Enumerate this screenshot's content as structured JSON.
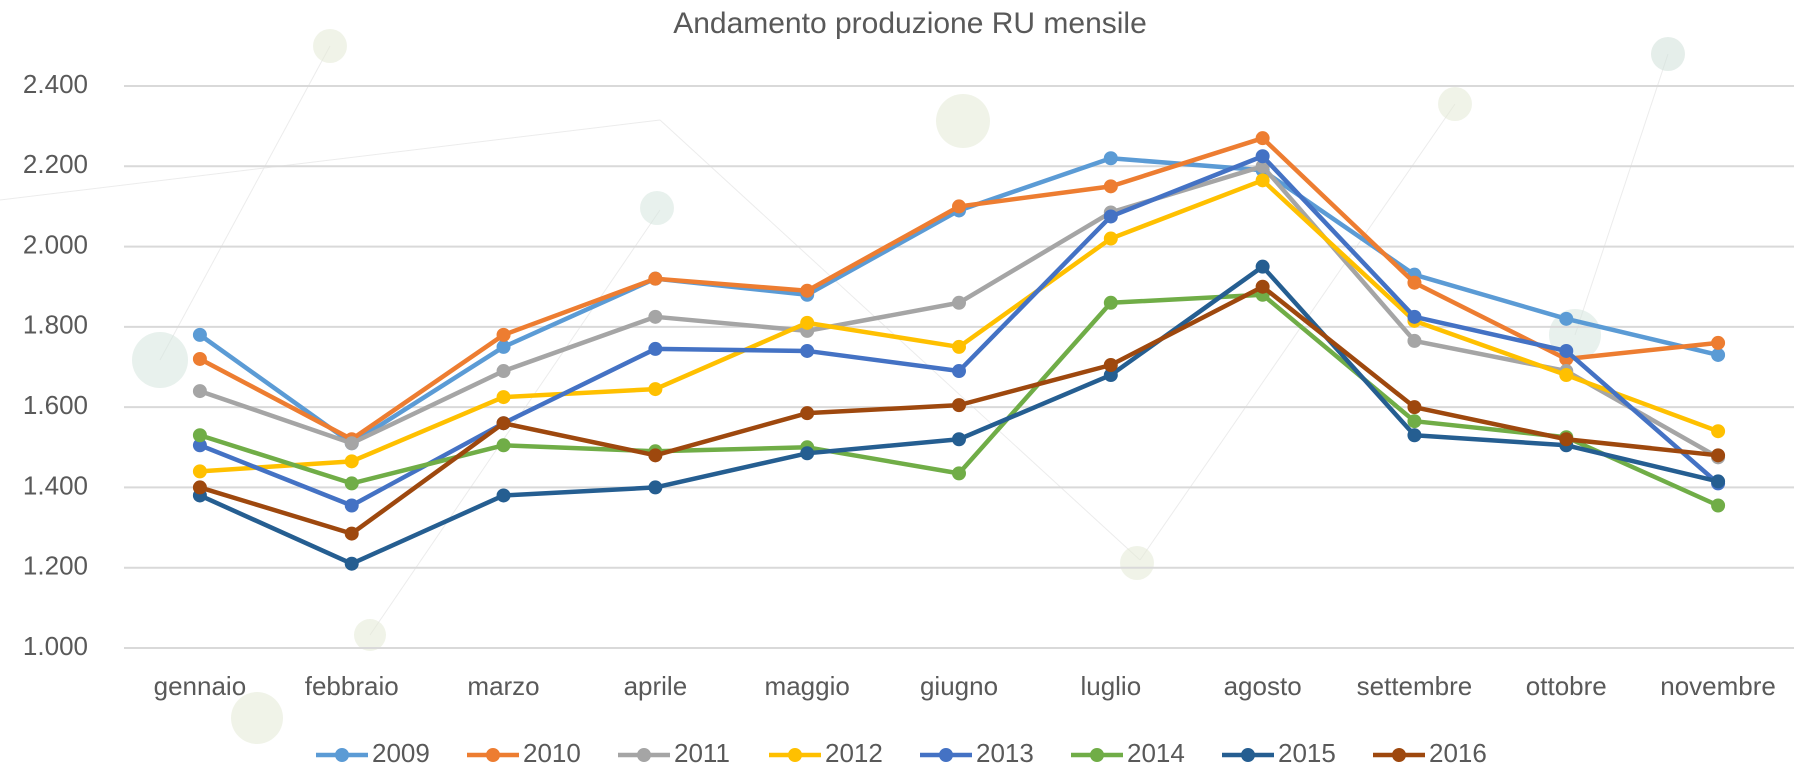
{
  "chart_data": {
    "type": "line",
    "title": "Andamento produzione  RU mensile",
    "categories": [
      "gennaio",
      "febbraio",
      "marzo",
      "aprile",
      "maggio",
      "giugno",
      "luglio",
      "agosto",
      "settembre",
      "ottobre",
      "novembre"
    ],
    "series": [
      {
        "name": "2009",
        "color": "#5B9BD5",
        "values": [
          1780,
          1510,
          1750,
          1920,
          1880,
          2090,
          2220,
          2190,
          1930,
          1820,
          1730
        ]
      },
      {
        "name": "2010",
        "color": "#ED7D31",
        "values": [
          1720,
          1520,
          1780,
          1920,
          1890,
          2100,
          2150,
          2270,
          1910,
          1720,
          1760
        ]
      },
      {
        "name": "2011",
        "color": "#A5A5A5",
        "values": [
          1640,
          1510,
          1690,
          1825,
          1790,
          1860,
          2085,
          2200,
          1765,
          1690,
          1475
        ]
      },
      {
        "name": "2012",
        "color": "#FFC000",
        "values": [
          1440,
          1465,
          1625,
          1645,
          1810,
          1750,
          2020,
          2165,
          1815,
          1680,
          1540
        ]
      },
      {
        "name": "2013",
        "color": "#4472C4",
        "values": [
          1505,
          1355,
          1560,
          1745,
          1740,
          1690,
          2075,
          2225,
          1825,
          1740,
          1410
        ]
      },
      {
        "name": "2014",
        "color": "#70AD47",
        "values": [
          1530,
          1410,
          1505,
          1490,
          1500,
          1435,
          1860,
          1880,
          1565,
          1525,
          1355
        ]
      },
      {
        "name": "2015",
        "color": "#255E91",
        "values": [
          1380,
          1210,
          1380,
          1400,
          1485,
          1520,
          1680,
          1950,
          1530,
          1505,
          1415
        ]
      },
      {
        "name": "2016",
        "color": "#9E480E",
        "values": [
          1400,
          1285,
          1560,
          1480,
          1585,
          1605,
          1705,
          1900,
          1600,
          1520,
          1480
        ]
      }
    ],
    "ylim": [
      1000,
      2400
    ],
    "yticks": [
      {
        "value": 1000,
        "label": "1.000"
      },
      {
        "value": 1200,
        "label": "1.200"
      },
      {
        "value": 1400,
        "label": "1.400"
      },
      {
        "value": 1600,
        "label": "1.600"
      },
      {
        "value": 1800,
        "label": "1.800"
      },
      {
        "value": 2000,
        "label": "2.000"
      },
      {
        "value": 2200,
        "label": "2.200"
      },
      {
        "value": 2400,
        "label": "2.400"
      }
    ],
    "grid": true,
    "legend": "bottom"
  }
}
